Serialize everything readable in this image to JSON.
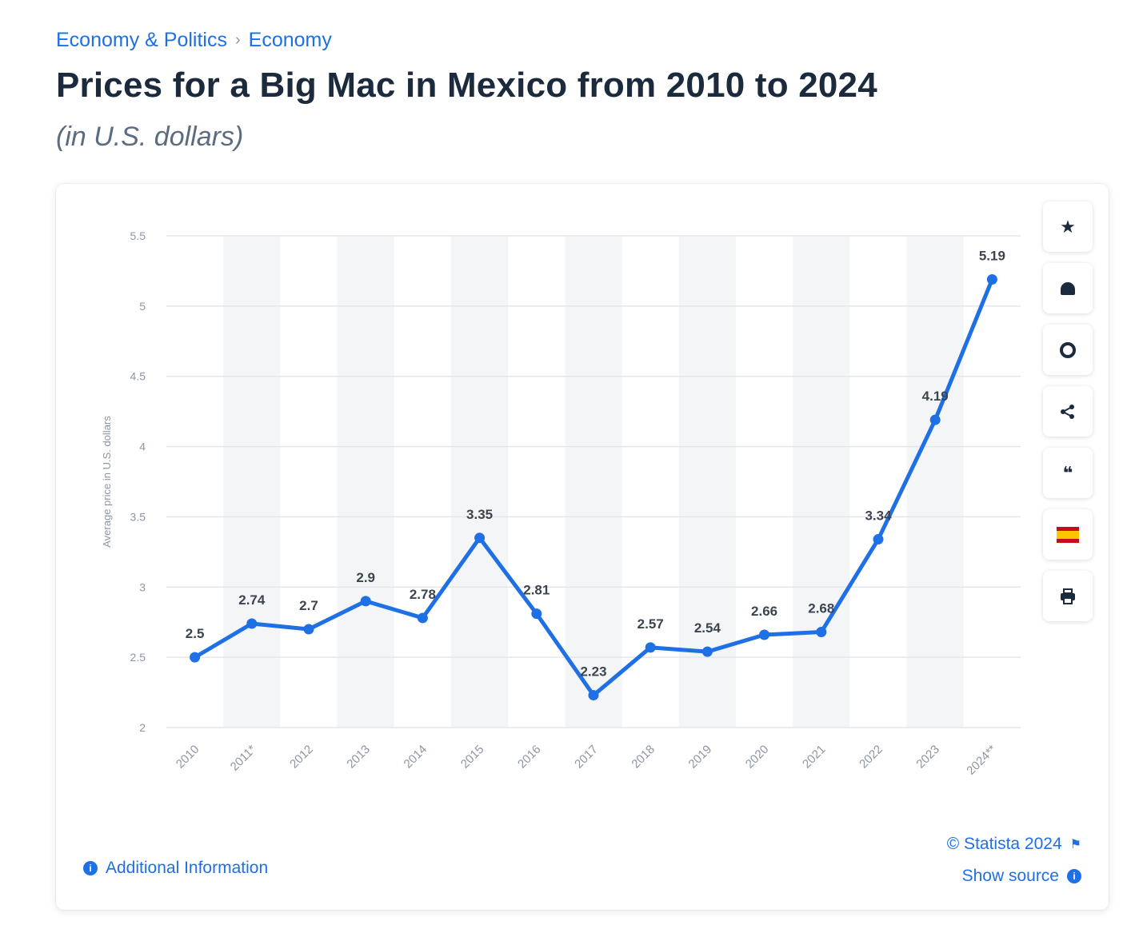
{
  "breadcrumb": {
    "items": [
      "Economy & Politics",
      "Economy"
    ],
    "separator": "›"
  },
  "header": {
    "title": "Prices for a Big Mac in Mexico from 2010 to 2024",
    "subtitle": "(in U.S. dollars)"
  },
  "toolbar": {
    "buttons": [
      {
        "name": "favorite",
        "icon": "star-icon",
        "glyph": "★"
      },
      {
        "name": "notification",
        "icon": "bell-icon",
        "glyph": "🔔"
      },
      {
        "name": "settings",
        "icon": "gear-icon",
        "glyph": "⚙"
      },
      {
        "name": "share",
        "icon": "share-icon",
        "glyph": "⋖"
      },
      {
        "name": "cite",
        "icon": "quote-icon",
        "glyph": "❝"
      },
      {
        "name": "language",
        "icon": "spain-flag-icon",
        "glyph": ""
      },
      {
        "name": "print",
        "icon": "printer-icon",
        "glyph": "⎙"
      }
    ]
  },
  "footer": {
    "additional_info": "Additional Information",
    "copyright": "© Statista 2024",
    "show_source": "Show source"
  },
  "colors": {
    "line": "#1f6fe5",
    "accent": "#1f6fe5",
    "title": "#1b2a3d"
  },
  "chart_data": {
    "type": "line",
    "title": "Prices for a Big Mac in Mexico from 2010 to 2024",
    "subtitle": "(in U.S. dollars)",
    "xlabel": "",
    "ylabel": "Average price in U.S. dollars",
    "categories": [
      "2010",
      "2011*",
      "2012",
      "2013",
      "2014",
      "2015",
      "2016",
      "2017",
      "2018",
      "2019",
      "2020",
      "2021",
      "2022",
      "2023",
      "2024**"
    ],
    "series": [
      {
        "values": [
          2.5,
          2.74,
          2.7,
          2.9,
          2.78,
          3.35,
          2.81,
          2.23,
          2.57,
          2.54,
          2.66,
          2.68,
          3.34,
          4.19,
          5.19
        ]
      }
    ],
    "data_labels": [
      "2.5",
      "2.74",
      "2.7",
      "2.9",
      "2.78",
      "3.35",
      "2.81",
      "2.23",
      "2.57",
      "2.54",
      "2.66",
      "2.68",
      "3.34",
      "4.19",
      "5.19"
    ],
    "yticks": [
      "2",
      "2.5",
      "3",
      "3.5",
      "4",
      "4.5",
      "5",
      "5.5"
    ],
    "ylim": [
      2,
      5.5
    ],
    "grid": true,
    "legend": "none"
  }
}
